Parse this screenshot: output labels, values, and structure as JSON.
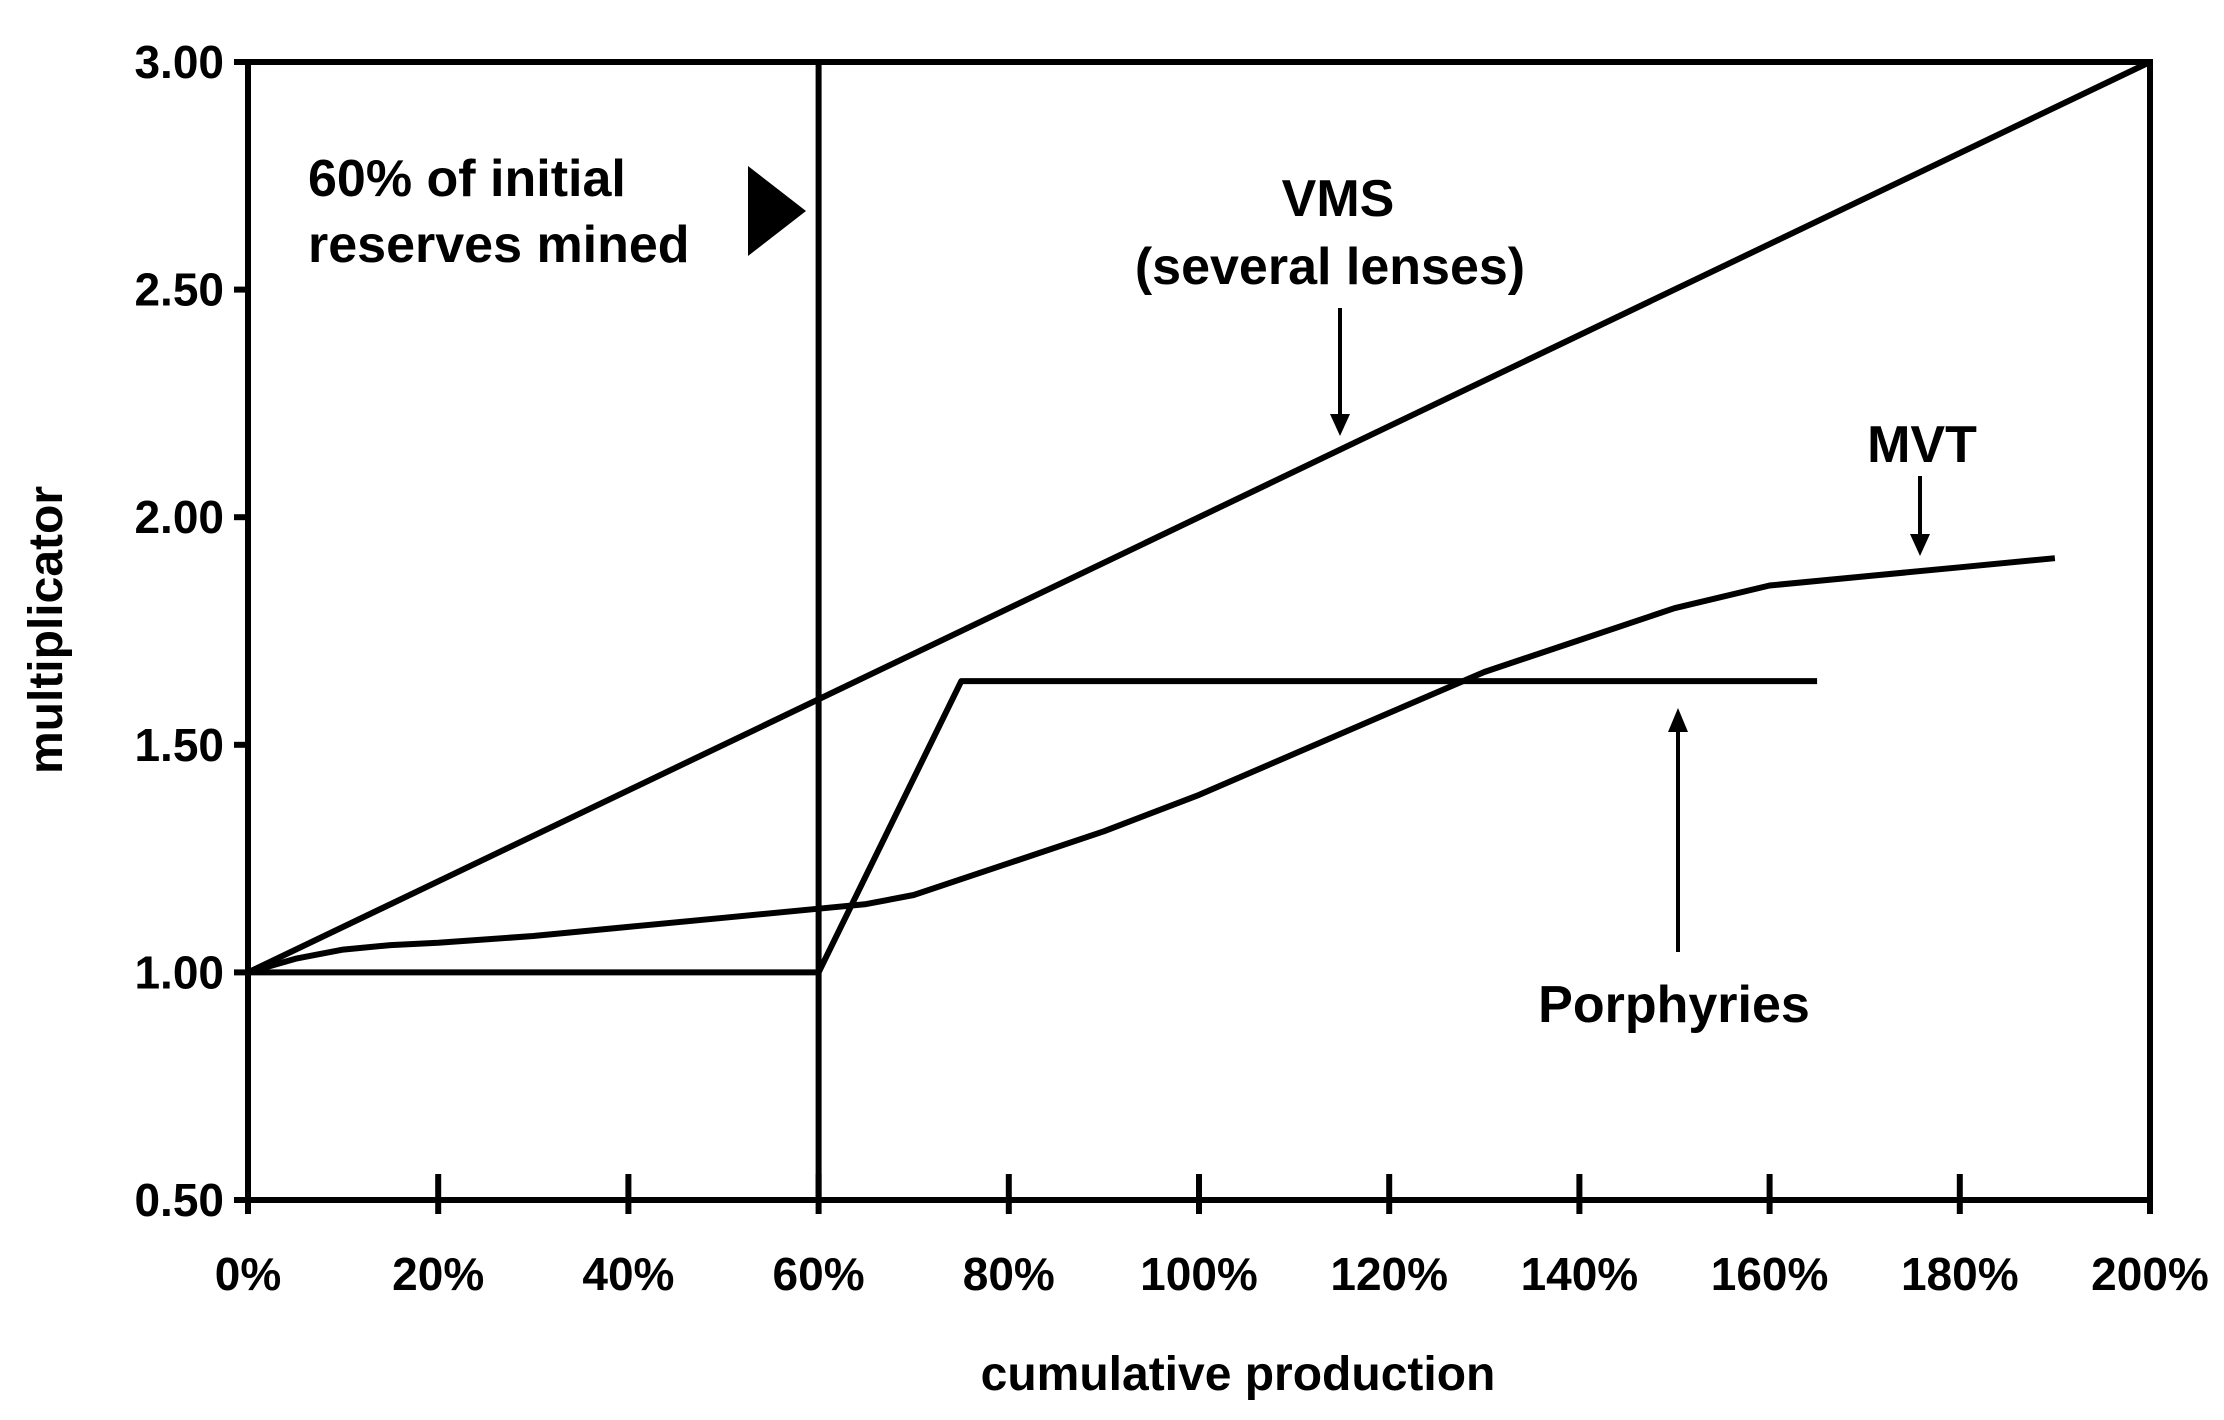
{
  "chart_data": {
    "type": "line",
    "title": "",
    "xlabel": "cumulative production",
    "ylabel": "multiplicator",
    "xlim": [
      0,
      200
    ],
    "ylim": [
      0.5,
      3.0
    ],
    "x_ticks": [
      0,
      20,
      40,
      60,
      80,
      100,
      120,
      140,
      160,
      180,
      200
    ],
    "x_tick_labels": [
      "0%",
      "20%",
      "40%",
      "60%",
      "80%",
      "100%",
      "120%",
      "140%",
      "160%",
      "180%",
      "200%"
    ],
    "y_ticks": [
      0.5,
      1.0,
      1.5,
      2.0,
      2.5,
      3.0
    ],
    "y_tick_labels": [
      "0.50",
      "1.00",
      "1.50",
      "2.00",
      "2.50",
      "3.00"
    ],
    "grid": false,
    "reference_line": {
      "x": 60,
      "label_lines": [
        "60%  of initial",
        "reserves mined"
      ]
    },
    "series": [
      {
        "name": "VMS (several lenses)",
        "label_lines": [
          "VMS",
          "(several lenses)"
        ],
        "x": [
          0,
          200
        ],
        "y": [
          1.0,
          3.0
        ]
      },
      {
        "name": "MVT",
        "label_lines": [
          "MVT"
        ],
        "x": [
          0,
          5,
          10,
          15,
          20,
          30,
          40,
          50,
          60,
          65,
          70,
          80,
          90,
          100,
          110,
          120,
          130,
          140,
          150,
          160,
          170,
          180,
          190
        ],
        "y": [
          1.0,
          1.03,
          1.05,
          1.06,
          1.065,
          1.08,
          1.1,
          1.12,
          1.14,
          1.15,
          1.17,
          1.24,
          1.31,
          1.39,
          1.48,
          1.57,
          1.66,
          1.73,
          1.8,
          1.85,
          1.87,
          1.89,
          1.91
        ]
      },
      {
        "name": "Porphyries",
        "label_lines": [
          "Porphyries"
        ],
        "x": [
          0,
          60,
          75,
          165
        ],
        "y": [
          1.0,
          1.0,
          1.64,
          1.64
        ]
      }
    ]
  }
}
